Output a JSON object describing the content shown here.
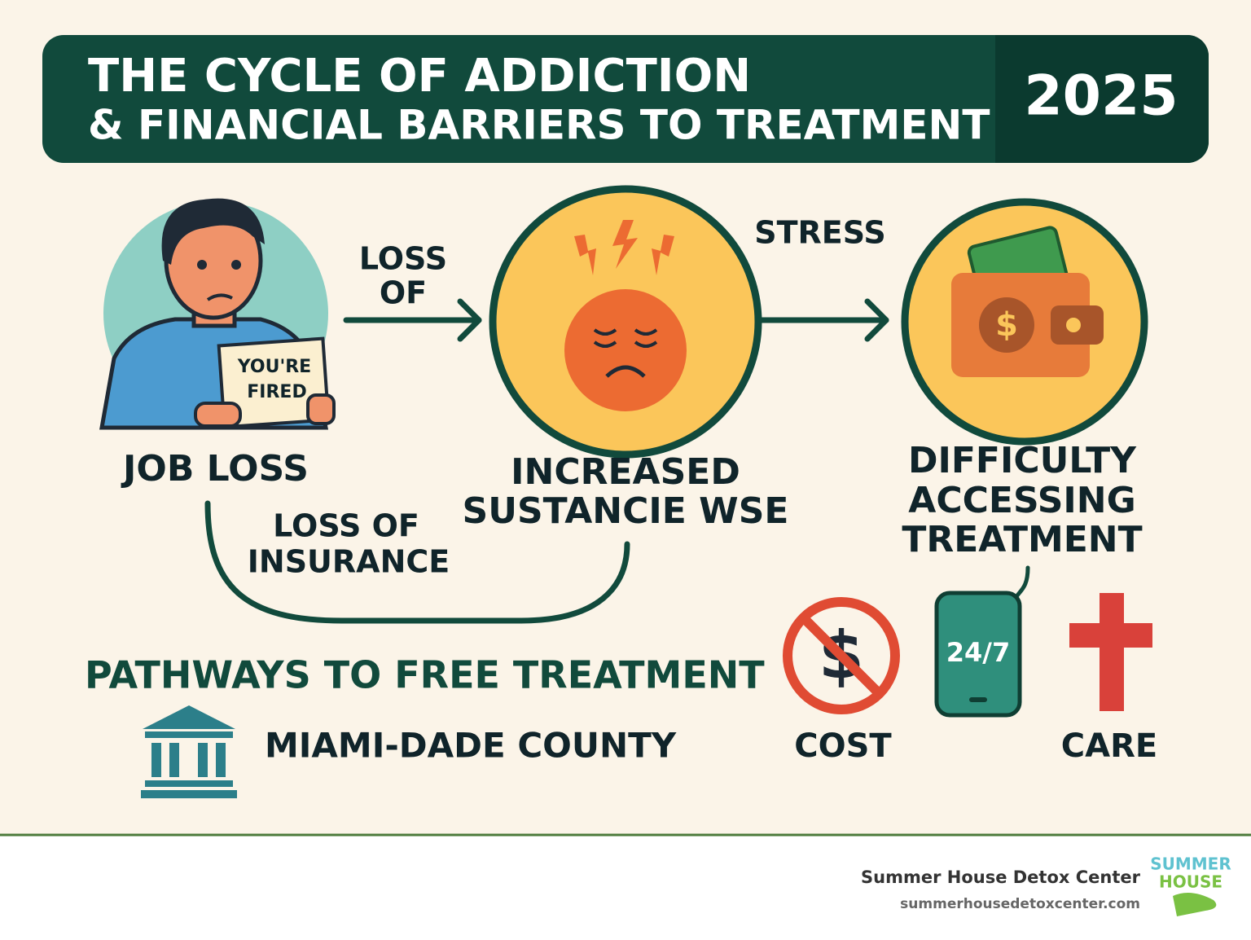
{
  "header": {
    "title_lines": [
      "THE CYCLE OF ADDICTION",
      "& FINANCIAL BARRIERS TO TREATMENT"
    ],
    "year": "2025"
  },
  "illustration": {
    "paper_lines": [
      "YOU'RE",
      "FIRED"
    ],
    "wallet_symbol": "$"
  },
  "nodes": [
    {
      "label_lines": [
        "JOB LOSS"
      ]
    },
    {
      "label_lines": [
        "INCREASED",
        "SUSTANCIE WSE"
      ]
    },
    {
      "label_lines": [
        "DIFFICULTY",
        "ACCESSING",
        "TREATMENT"
      ]
    }
  ],
  "edges": [
    {
      "label_lines": [
        "LOSS",
        "OF"
      ]
    },
    {
      "label_lines": [
        "STRESS"
      ]
    },
    {
      "label_lines": [
        "LOSS OF",
        "INSURANCE"
      ]
    }
  ],
  "pathways": {
    "title": "PATHWAYS TO FREE TREATMENT",
    "county": "MIAMI-DADE COUNTY",
    "cost_symbol": "$",
    "phone_text": "24/7",
    "cost_label": "COST",
    "care_label": "CARE"
  },
  "footer": {
    "name": "Summer House Detox Center",
    "url": "summerhousedetoxcenter.com",
    "logo_lines": [
      "SUMMER",
      "HOUSE"
    ]
  }
}
